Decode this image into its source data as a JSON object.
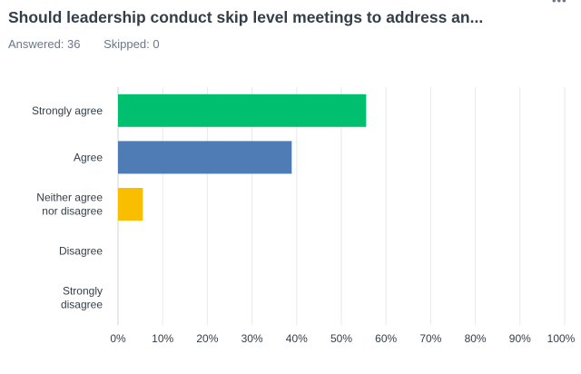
{
  "header": {
    "title": "Should leadership conduct skip level meetings to address an...",
    "answered": "Answered: 36",
    "skipped": "Skipped: 0",
    "more_icon": "more-horizontal-icon"
  },
  "chart_data": {
    "type": "bar",
    "orientation": "horizontal",
    "categories": [
      [
        "Strongly agree"
      ],
      [
        "Agree"
      ],
      [
        "Neither agree",
        "nor disagree"
      ],
      [
        "Disagree"
      ],
      [
        "Strongly",
        "disagree"
      ]
    ],
    "values": [
      55.56,
      38.89,
      5.56,
      0,
      0
    ],
    "colors": [
      "#00bf6f",
      "#507cb6",
      "#f9be00",
      "#6bc8cd",
      "#ff8b4f"
    ],
    "xlim": [
      0,
      100
    ],
    "ticks": [
      "0%",
      "10%",
      "20%",
      "30%",
      "40%",
      "50%",
      "60%",
      "70%",
      "80%",
      "90%",
      "100%"
    ],
    "grid": true,
    "title": "",
    "xlabel": "",
    "ylabel": ""
  }
}
